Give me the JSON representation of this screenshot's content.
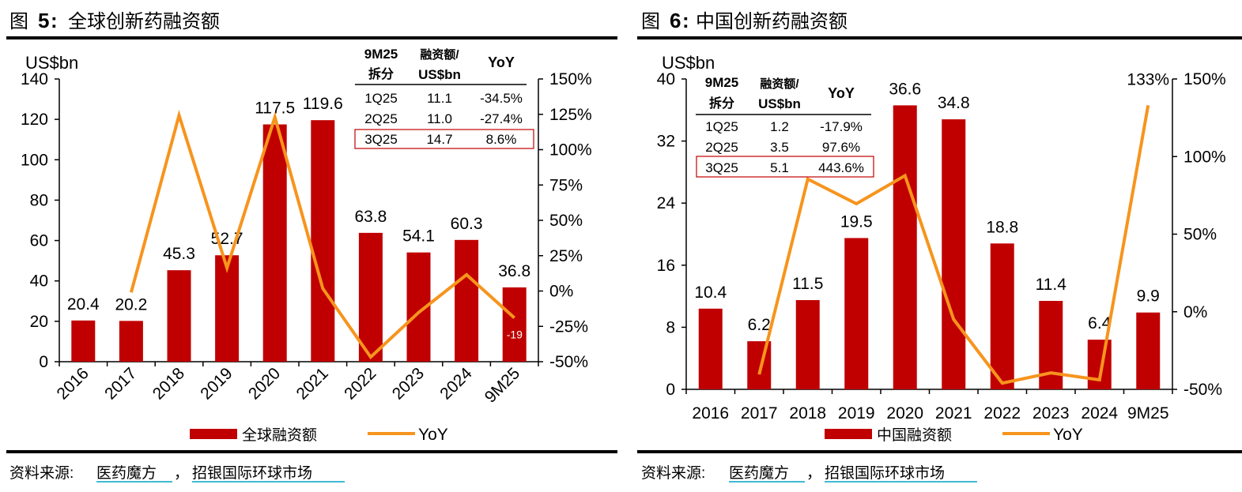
{
  "colors": {
    "bar": "#C00000",
    "line": "#F7941D",
    "rule": "#000000",
    "highlight": "#C00000",
    "source_underline": "#00A3C4"
  },
  "charts": [
    {
      "fig_label": "图",
      "fig_number": "5",
      "fig_colon": ":",
      "fig_title": "全球创新药融资额",
      "unit_label": "US$bn",
      "legend": {
        "bar_label": "全球融资额",
        "line_label": "YoY"
      },
      "source": {
        "prefix": "资料来源:",
        "link1": "医药魔方",
        "sep": "，",
        "link2": "招银国际环球市场"
      },
      "table": {
        "headers": [
          [
            "9M25",
            "拆分"
          ],
          [
            "融资额/",
            "US$bn"
          ],
          [
            "YoY",
            ""
          ]
        ],
        "rows": [
          [
            "1Q25",
            "11.1",
            "-34.5%"
          ],
          [
            "2Q25",
            "11.0",
            "-27.4%"
          ],
          [
            "3Q25",
            "14.7",
            "8.6%"
          ]
        ]
      },
      "chart_data": {
        "type": "bar",
        "title": "全球创新药融资额",
        "categories": [
          "2016",
          "2017",
          "2018",
          "2019",
          "2020",
          "2021",
          "2022",
          "2023",
          "2024",
          "9M25"
        ],
        "series": [
          {
            "name": "全球融资额",
            "type": "bar",
            "axis": "left",
            "values": [
              20.4,
              20.2,
              45.3,
              52.7,
              117.5,
              119.6,
              63.8,
              54.1,
              60.3,
              36.8
            ]
          },
          {
            "name": "YoY",
            "type": "line",
            "axis": "right",
            "values": [
              null,
              -1.0,
              124.3,
              16.3,
              123.0,
              1.8,
              -46.7,
              -15.2,
              11.5,
              -19.0
            ]
          }
        ],
        "data_labels": [
          "20.4",
          "20.2",
          "45.3",
          "52.7",
          "117.5",
          "119.6",
          "63.8",
          "54.1",
          "60.3",
          "36.8"
        ],
        "line_label_visible": "-19",
        "y_left": {
          "label": "US$bn",
          "ylim": [
            0,
            140
          ],
          "ticks": [
            0,
            20,
            40,
            60,
            80,
            100,
            120,
            140
          ]
        },
        "y_right": {
          "ylim": [
            -50,
            150
          ],
          "ticks": [
            -50,
            -25,
            0,
            25,
            50,
            75,
            100,
            125,
            150
          ],
          "tick_labels": [
            "-50%",
            "-25%",
            "0%",
            "25%",
            "50%",
            "75%",
            "100%",
            "125%",
            "150%"
          ]
        },
        "legend_position": "bottom",
        "x_tick_rotation": "rotated"
      }
    },
    {
      "fig_label": "图",
      "fig_number": "6",
      "fig_colon": ":",
      "fig_title": "中国创新药融资额",
      "unit_label": "US$bn",
      "legend": {
        "bar_label": "中国融资额",
        "line_label": "YoY"
      },
      "source": {
        "prefix": "资料来源:",
        "link1": "医药魔方",
        "sep": "，",
        "link2": "招银国际环球市场"
      },
      "table": {
        "headers": [
          [
            "9M25",
            "拆分"
          ],
          [
            "融资额/",
            "US$bn"
          ],
          [
            "YoY",
            ""
          ]
        ],
        "rows": [
          [
            "1Q25",
            "1.2",
            "-17.9%"
          ],
          [
            "2Q25",
            "3.5",
            "97.6%"
          ],
          [
            "3Q25",
            "5.1",
            "443.6%"
          ]
        ]
      },
      "chart_data": {
        "type": "bar",
        "title": "中国创新药融资额",
        "categories": [
          "2016",
          "2017",
          "2018",
          "2019",
          "2020",
          "2021",
          "2022",
          "2023",
          "2024",
          "9M25"
        ],
        "series": [
          {
            "name": "中国融资额",
            "type": "bar",
            "axis": "left",
            "values": [
              10.4,
              6.2,
              11.5,
              19.5,
              36.6,
              34.8,
              18.8,
              11.4,
              6.4,
              9.9
            ]
          },
          {
            "name": "YoY",
            "type": "line",
            "axis": "right",
            "values": [
              null,
              -40.4,
              85.5,
              69.6,
              87.7,
              -4.9,
              -46.0,
              -39.4,
              -43.9,
              133
            ]
          }
        ],
        "data_labels": [
          "10.4",
          "6.2",
          "11.5",
          "19.5",
          "36.6",
          "34.8",
          "18.8",
          "11.4",
          "6.4",
          "9.9"
        ],
        "line_label_visible": "133%",
        "y_left": {
          "label": "US$bn",
          "ylim": [
            0,
            40
          ],
          "ticks": [
            0,
            8,
            16,
            24,
            32,
            40
          ]
        },
        "y_right": {
          "ylim": [
            -50,
            150
          ],
          "ticks": [
            -50,
            0,
            50,
            100,
            150
          ],
          "tick_labels": [
            "-50%",
            "0%",
            "50%",
            "100%",
            "150%"
          ]
        },
        "legend_position": "bottom",
        "x_tick_rotation": "horizontal"
      }
    }
  ]
}
